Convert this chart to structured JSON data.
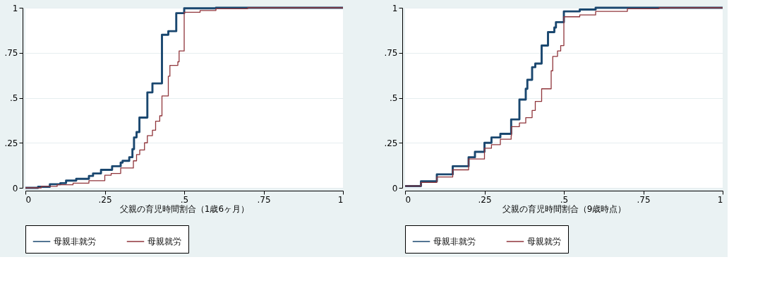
{
  "chart_data": [
    {
      "type": "step",
      "xlabel": "父親の育児時間割合（1歳6ヶ月）",
      "xlim": [
        0,
        1
      ],
      "ylim": [
        0,
        1
      ],
      "xticks": [
        0,
        {
          "value": 0.25,
          "label": ".25"
        },
        {
          "value": 0.5,
          "label": ".5"
        },
        {
          "value": 0.75,
          "label": ".75"
        },
        1
      ],
      "yticks": [
        0,
        {
          "value": 0.25,
          "label": ".25"
        },
        {
          "value": 0.5,
          "label": ".5"
        },
        {
          "value": 0.75,
          "label": ".75"
        },
        1
      ],
      "grid": "y",
      "legend": "bottom",
      "series": [
        {
          "name": "母親非就労",
          "color": "#1a476f",
          "x": [
            0,
            0.04,
            0.077,
            0.11,
            0.128,
            0.16,
            0.2,
            0.213,
            0.238,
            0.273,
            0.3,
            0.306,
            0.327,
            0.337,
            0.342,
            0.35,
            0.359,
            0.384,
            0.4,
            0.43,
            0.45,
            0.475,
            0.5,
            0.6,
            1
          ],
          "values": [
            0,
            0.006,
            0.02,
            0.026,
            0.04,
            0.05,
            0.066,
            0.08,
            0.1,
            0.12,
            0.14,
            0.15,
            0.17,
            0.215,
            0.28,
            0.31,
            0.39,
            0.53,
            0.58,
            0.85,
            0.87,
            0.97,
            0.997,
            1,
            1
          ]
        },
        {
          "name": "母親就労",
          "color": "#90353b",
          "x": [
            0,
            0.05,
            0.1,
            0.15,
            0.2,
            0.25,
            0.27,
            0.3,
            0.34,
            0.35,
            0.36,
            0.375,
            0.384,
            0.4,
            0.41,
            0.423,
            0.43,
            0.45,
            0.455,
            0.48,
            0.484,
            0.5,
            0.55,
            0.6,
            0.7,
            1
          ],
          "values": [
            0,
            0.008,
            0.017,
            0.026,
            0.04,
            0.07,
            0.08,
            0.11,
            0.15,
            0.185,
            0.21,
            0.25,
            0.29,
            0.32,
            0.37,
            0.4,
            0.51,
            0.62,
            0.68,
            0.7,
            0.76,
            0.975,
            0.985,
            0.995,
            1,
            1
          ]
        }
      ]
    },
    {
      "type": "step",
      "xlabel": "父親の育児時間割合（9歳時点）",
      "xlim": [
        0,
        1
      ],
      "ylim": [
        0,
        1
      ],
      "xticks": [
        0,
        {
          "value": 0.25,
          "label": ".25"
        },
        {
          "value": 0.5,
          "label": ".5"
        },
        {
          "value": 0.75,
          "label": ".75"
        },
        1
      ],
      "yticks": [
        0,
        {
          "value": 0.25,
          "label": ".25"
        },
        {
          "value": 0.5,
          "label": ".5"
        },
        {
          "value": 0.75,
          "label": ".75"
        },
        1
      ],
      "grid": "y",
      "legend": "bottom",
      "series": [
        {
          "name": "母親非就労",
          "color": "#1a476f",
          "x": [
            0,
            0.02,
            0.05,
            0.1,
            0.15,
            0.2,
            0.22,
            0.25,
            0.272,
            0.3,
            0.334,
            0.36,
            0.38,
            0.385,
            0.4,
            0.41,
            0.43,
            0.45,
            0.47,
            0.475,
            0.5,
            0.55,
            0.6,
            1
          ],
          "values": [
            0.01,
            0.01,
            0.036,
            0.075,
            0.12,
            0.17,
            0.2,
            0.25,
            0.28,
            0.3,
            0.38,
            0.49,
            0.55,
            0.6,
            0.67,
            0.69,
            0.79,
            0.865,
            0.89,
            0.92,
            0.98,
            0.99,
            1,
            1
          ]
        },
        {
          "name": "母親就労",
          "color": "#90353b",
          "x": [
            0,
            0.02,
            0.05,
            0.1,
            0.15,
            0.2,
            0.25,
            0.272,
            0.3,
            0.334,
            0.335,
            0.36,
            0.38,
            0.4,
            0.41,
            0.43,
            0.46,
            0.465,
            0.48,
            0.49,
            0.5,
            0.55,
            0.6,
            0.7,
            0.8,
            1
          ],
          "values": [
            0.01,
            0.01,
            0.03,
            0.06,
            0.1,
            0.16,
            0.22,
            0.24,
            0.27,
            0.29,
            0.34,
            0.36,
            0.39,
            0.43,
            0.48,
            0.55,
            0.65,
            0.73,
            0.76,
            0.79,
            0.95,
            0.96,
            0.98,
            0.995,
            1,
            1
          ]
        }
      ]
    }
  ]
}
